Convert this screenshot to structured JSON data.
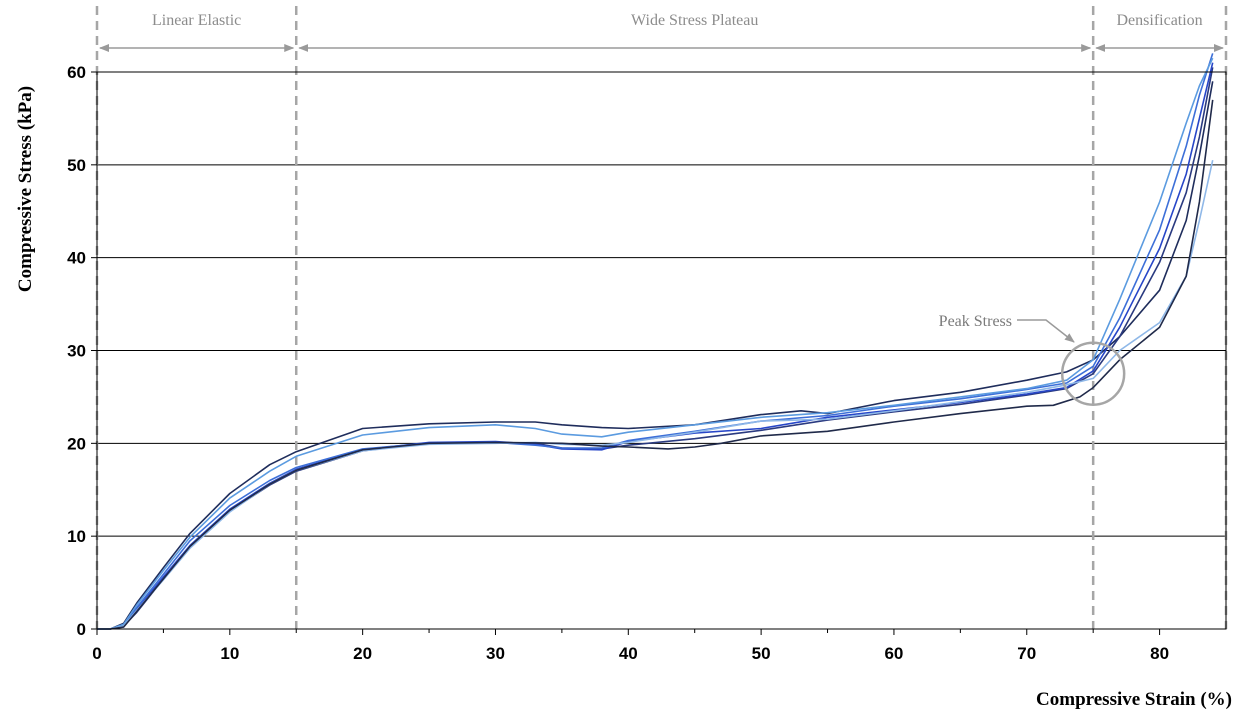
{
  "chart_data": {
    "type": "line",
    "title": "",
    "xlabel": "Compressive Strain (%)",
    "ylabel": "Compressive Stress (kPa)",
    "xlim": [
      0,
      85
    ],
    "ylim": [
      0,
      60
    ],
    "x_ticks": [
      0,
      10,
      20,
      30,
      40,
      50,
      60,
      70,
      80
    ],
    "y_ticks": [
      0,
      10,
      20,
      30,
      40,
      50,
      60
    ],
    "grid": "horizontal",
    "legend": "none",
    "regions": [
      {
        "label": "Linear Elastic",
        "x_start": 0,
        "x_end": 15
      },
      {
        "label": "Wide Stress Plateau",
        "x_start": 15,
        "x_end": 75
      },
      {
        "label": "Densification",
        "x_start": 75,
        "x_end": 85
      }
    ],
    "region_boundaries": [
      0,
      15,
      75,
      85
    ],
    "annotations": [
      {
        "label": "Peak Stress",
        "x": 75,
        "y": 27.5
      }
    ],
    "series": [
      {
        "color": "#1f2d5c",
        "points": [
          [
            0,
            0
          ],
          [
            1,
            0
          ],
          [
            2,
            0.6
          ],
          [
            3,
            2.8
          ],
          [
            5,
            6.6
          ],
          [
            7,
            10.3
          ],
          [
            10,
            14.6
          ],
          [
            13,
            17.7
          ],
          [
            15,
            19.1
          ],
          [
            20,
            21.6
          ],
          [
            25,
            22.1
          ],
          [
            30,
            22.3
          ],
          [
            33,
            22.3
          ],
          [
            35,
            22.0
          ],
          [
            38,
            21.7
          ],
          [
            40,
            21.6
          ],
          [
            45,
            22.0
          ],
          [
            50,
            23.1
          ],
          [
            53,
            23.5
          ],
          [
            55,
            23.2
          ],
          [
            60,
            24.6
          ],
          [
            65,
            25.5
          ],
          [
            70,
            26.8
          ],
          [
            73,
            27.7
          ],
          [
            75,
            29.0
          ],
          [
            77,
            31.5
          ],
          [
            80,
            36.5
          ],
          [
            82,
            44.0
          ],
          [
            83,
            51.0
          ],
          [
            84,
            59.0
          ]
        ]
      },
      {
        "color": "#2a3a80",
        "points": [
          [
            0,
            0
          ],
          [
            1,
            0
          ],
          [
            2,
            0.3
          ],
          [
            3,
            1.8
          ],
          [
            5,
            5.4
          ],
          [
            7,
            8.8
          ],
          [
            10,
            12.7
          ],
          [
            13,
            15.5
          ],
          [
            15,
            17.0
          ],
          [
            20,
            19.2
          ],
          [
            25,
            20.0
          ],
          [
            30,
            20.1
          ],
          [
            33,
            20.0
          ],
          [
            35,
            19.5
          ],
          [
            38,
            19.4
          ],
          [
            40,
            19.8
          ],
          [
            45,
            20.5
          ],
          [
            50,
            21.4
          ],
          [
            55,
            22.5
          ],
          [
            60,
            23.4
          ],
          [
            65,
            24.2
          ],
          [
            70,
            25.2
          ],
          [
            73,
            25.9
          ],
          [
            75,
            27.5
          ],
          [
            77,
            31.5
          ],
          [
            80,
            39.5
          ],
          [
            82,
            47.0
          ],
          [
            83,
            53.0
          ],
          [
            84,
            60.5
          ]
        ]
      },
      {
        "color": "#2746c8",
        "points": [
          [
            0,
            0
          ],
          [
            1,
            0
          ],
          [
            2,
            0.4
          ],
          [
            3,
            2.1
          ],
          [
            5,
            5.6
          ],
          [
            7,
            9.0
          ],
          [
            10,
            12.9
          ],
          [
            13,
            15.7
          ],
          [
            15,
            17.2
          ],
          [
            20,
            19.3
          ],
          [
            25,
            20.1
          ],
          [
            30,
            20.2
          ],
          [
            33,
            19.9
          ],
          [
            35,
            19.4
          ],
          [
            38,
            19.3
          ],
          [
            40,
            20.2
          ],
          [
            45,
            21.1
          ],
          [
            50,
            21.6
          ],
          [
            55,
            22.8
          ],
          [
            60,
            23.6
          ],
          [
            65,
            24.4
          ],
          [
            70,
            25.3
          ],
          [
            73,
            26.0
          ],
          [
            75,
            27.8
          ],
          [
            77,
            32.5
          ],
          [
            80,
            41.0
          ],
          [
            82,
            49.0
          ],
          [
            83,
            55.0
          ],
          [
            84,
            61.0
          ]
        ]
      },
      {
        "color": "#3d6fd8",
        "points": [
          [
            0,
            0
          ],
          [
            1,
            0
          ],
          [
            2,
            0.5
          ],
          [
            3,
            2.3
          ],
          [
            5,
            5.9
          ],
          [
            7,
            9.5
          ],
          [
            10,
            13.3
          ],
          [
            13,
            16.0
          ],
          [
            15,
            17.4
          ],
          [
            20,
            19.4
          ],
          [
            25,
            20.0
          ],
          [
            30,
            20.1
          ],
          [
            33,
            19.8
          ],
          [
            35,
            19.5
          ],
          [
            38,
            19.5
          ],
          [
            40,
            20.3
          ],
          [
            45,
            21.3
          ],
          [
            50,
            22.4
          ],
          [
            55,
            23.0
          ],
          [
            60,
            24.0
          ],
          [
            65,
            24.8
          ],
          [
            70,
            25.8
          ],
          [
            73,
            26.5
          ],
          [
            75,
            28.3
          ],
          [
            77,
            33.5
          ],
          [
            80,
            43.0
          ],
          [
            82,
            52.0
          ],
          [
            83,
            57.5
          ],
          [
            84,
            62.0
          ]
        ]
      },
      {
        "color": "#5b9be0",
        "points": [
          [
            0,
            0
          ],
          [
            1,
            0
          ],
          [
            2,
            0.5
          ],
          [
            3,
            2.6
          ],
          [
            5,
            6.3
          ],
          [
            7,
            9.9
          ],
          [
            10,
            14.1
          ],
          [
            13,
            17.0
          ],
          [
            15,
            18.6
          ],
          [
            20,
            20.9
          ],
          [
            25,
            21.7
          ],
          [
            30,
            22.0
          ],
          [
            33,
            21.6
          ],
          [
            35,
            21.0
          ],
          [
            38,
            20.7
          ],
          [
            40,
            21.2
          ],
          [
            45,
            22.0
          ],
          [
            50,
            22.8
          ],
          [
            55,
            23.3
          ],
          [
            60,
            24.1
          ],
          [
            65,
            25.0
          ],
          [
            70,
            25.9
          ],
          [
            73,
            26.8
          ],
          [
            75,
            29.0
          ],
          [
            77,
            35.5
          ],
          [
            80,
            46.0
          ],
          [
            82,
            54.5
          ],
          [
            83,
            58.5
          ],
          [
            84,
            61.5
          ]
        ]
      },
      {
        "color": "#8fb8e8",
        "points": [
          [
            0,
            0
          ],
          [
            1,
            0
          ],
          [
            2,
            0.3
          ],
          [
            3,
            2.0
          ],
          [
            5,
            5.3
          ],
          [
            7,
            8.7
          ],
          [
            10,
            12.6
          ],
          [
            13,
            15.6
          ],
          [
            15,
            17.1
          ],
          [
            20,
            19.2
          ],
          [
            25,
            19.9
          ],
          [
            30,
            20.0
          ],
          [
            33,
            20.1
          ],
          [
            35,
            19.9
          ],
          [
            38,
            19.8
          ],
          [
            40,
            20.1
          ],
          [
            45,
            21.2
          ],
          [
            50,
            22.4
          ],
          [
            55,
            22.6
          ],
          [
            60,
            23.5
          ],
          [
            65,
            24.5
          ],
          [
            70,
            25.5
          ],
          [
            73,
            26.3
          ],
          [
            75,
            27.0
          ],
          [
            77,
            30.0
          ],
          [
            80,
            33.0
          ],
          [
            82,
            38.0
          ],
          [
            83,
            44.0
          ],
          [
            84,
            50.5
          ]
        ]
      },
      {
        "color": "#202a4a",
        "points": [
          [
            0,
            0
          ],
          [
            1,
            0
          ],
          [
            2,
            0.2
          ],
          [
            3,
            1.9
          ],
          [
            5,
            5.4
          ],
          [
            7,
            8.9
          ],
          [
            10,
            12.8
          ],
          [
            13,
            15.6
          ],
          [
            15,
            17.1
          ],
          [
            20,
            19.3
          ],
          [
            25,
            20.0
          ],
          [
            30,
            20.1
          ],
          [
            35,
            20.0
          ],
          [
            38,
            19.7
          ],
          [
            40,
            19.6
          ],
          [
            43,
            19.4
          ],
          [
            45,
            19.6
          ],
          [
            47,
            20.0
          ],
          [
            50,
            20.8
          ],
          [
            55,
            21.3
          ],
          [
            60,
            22.3
          ],
          [
            65,
            23.2
          ],
          [
            70,
            24.0
          ],
          [
            72,
            24.1
          ],
          [
            74,
            25.0
          ],
          [
            75,
            26.0
          ],
          [
            77,
            29.0
          ],
          [
            80,
            32.5
          ],
          [
            82,
            38.0
          ],
          [
            83,
            46.0
          ],
          [
            84,
            57.0
          ]
        ]
      }
    ]
  }
}
